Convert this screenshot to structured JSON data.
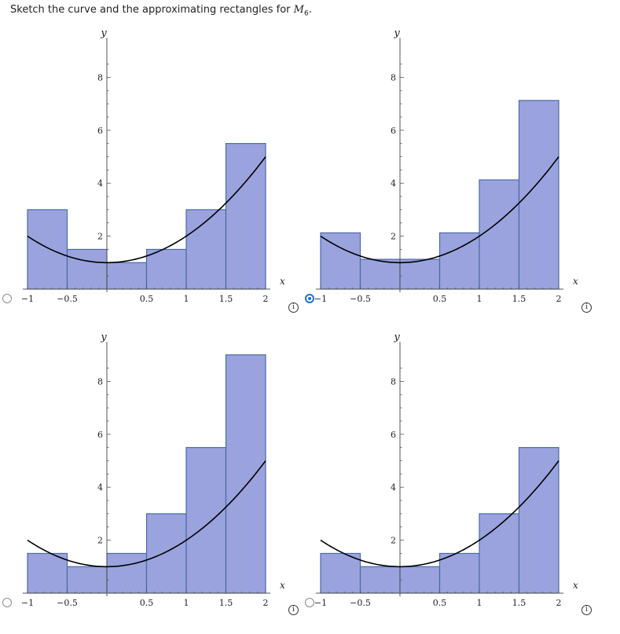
{
  "prompt": {
    "text": "Sketch the curve and the approximating rectangles for",
    "symbol": "M",
    "subscript": "6",
    "end": "."
  },
  "info_glyph": "i",
  "colors": {
    "rect_fill": "#9aa3dd",
    "rect_stroke": "#4a6aa8",
    "curve": "#000000",
    "axis": "#555555",
    "radio_selected": "#1f6fd6"
  },
  "options": [
    {
      "selected": false
    },
    {
      "selected": true
    },
    {
      "selected": false
    },
    {
      "selected": false
    }
  ],
  "chart_data": [
    {
      "type": "bar",
      "curve": "y = x^2 + 1",
      "xlim": [
        -1,
        2
      ],
      "ylim": [
        0,
        9
      ],
      "xlabel": "x",
      "ylabel": "y",
      "xticks": [
        "-1",
        "-0.5",
        "0.5",
        "1",
        "1.5",
        "2"
      ],
      "yticks": [
        "2",
        "4",
        "6",
        "8"
      ],
      "bars": [
        {
          "x0": -1,
          "x1": -0.5,
          "h": 3.0
        },
        {
          "x0": -0.5,
          "x1": 0,
          "h": 1.5
        },
        {
          "x0": 0,
          "x1": 0.5,
          "h": 1.0
        },
        {
          "x0": 0.5,
          "x1": 1,
          "h": 1.5
        },
        {
          "x0": 1,
          "x1": 1.5,
          "h": 3.0
        },
        {
          "x0": 1.5,
          "x1": 2,
          "h": 5.5
        }
      ]
    },
    {
      "type": "bar",
      "curve": "y = x^2 + 1",
      "xlim": [
        -1,
        2
      ],
      "ylim": [
        0,
        9
      ],
      "xlabel": "x",
      "ylabel": "y",
      "xticks": [
        "-1",
        "-0.5",
        "0.5",
        "1",
        "1.5",
        "2"
      ],
      "yticks": [
        "2",
        "4",
        "6",
        "8"
      ],
      "bars": [
        {
          "x0": -1,
          "x1": -0.5,
          "h": 2.125
        },
        {
          "x0": -0.5,
          "x1": 0,
          "h": 1.125
        },
        {
          "x0": 0,
          "x1": 0.5,
          "h": 1.125
        },
        {
          "x0": 0.5,
          "x1": 1,
          "h": 2.125
        },
        {
          "x0": 1,
          "x1": 1.5,
          "h": 4.125
        },
        {
          "x0": 1.5,
          "x1": 2,
          "h": 7.125
        }
      ]
    },
    {
      "type": "bar",
      "curve": "y = x^2 + 1",
      "xlim": [
        -1,
        2
      ],
      "ylim": [
        0,
        9
      ],
      "xlabel": "x",
      "ylabel": "y",
      "xticks": [
        "-1",
        "-0.5",
        "0.5",
        "1",
        "1.5",
        "2"
      ],
      "yticks": [
        "2",
        "4",
        "6",
        "8"
      ],
      "bars": [
        {
          "x0": -1,
          "x1": -0.5,
          "h": 1.5
        },
        {
          "x0": -0.5,
          "x1": 0,
          "h": 1.0
        },
        {
          "x0": 0,
          "x1": 0.5,
          "h": 1.5
        },
        {
          "x0": 0.5,
          "x1": 1,
          "h": 3.0
        },
        {
          "x0": 1,
          "x1": 1.5,
          "h": 5.5
        },
        {
          "x0": 1.5,
          "x1": 2,
          "h": 9.0
        }
      ]
    },
    {
      "type": "bar",
      "curve": "y = x^2 + 1",
      "xlim": [
        -1,
        2
      ],
      "ylim": [
        0,
        9
      ],
      "xlabel": "x",
      "ylabel": "y",
      "xticks": [
        "-1",
        "-0.5",
        "0.5",
        "1",
        "1.5",
        "2"
      ],
      "yticks": [
        "2",
        "4",
        "6",
        "8"
      ],
      "bars": [
        {
          "x0": -1,
          "x1": -0.5,
          "h": 1.5
        },
        {
          "x0": -0.5,
          "x1": 0,
          "h": 1.0
        },
        {
          "x0": 0,
          "x1": 0.5,
          "h": 1.0
        },
        {
          "x0": 0.5,
          "x1": 1,
          "h": 1.5
        },
        {
          "x0": 1,
          "x1": 1.5,
          "h": 3.0
        },
        {
          "x0": 1.5,
          "x1": 2,
          "h": 5.5
        }
      ]
    }
  ]
}
